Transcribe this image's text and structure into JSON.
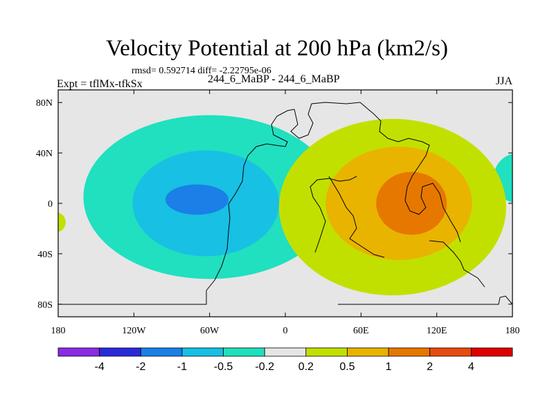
{
  "chart_data": {
    "type": "contour-map",
    "title": "Velocity Potential at 200 hPa (km2/s)",
    "stats_line": "rmsd= 0.592714 diff= -2.22795e-06",
    "expt_label": "Expt = tflMx-tfkSx",
    "subtitle": "244_6_MaBP - 244_6_MaBP",
    "season": "JJA",
    "x_axis": {
      "range": [
        -180,
        180
      ],
      "ticks": [
        -180,
        -120,
        -60,
        0,
        60,
        120,
        180
      ],
      "tick_labels": [
        "180",
        "120W",
        "60W",
        "0",
        "60E",
        "120E",
        "180"
      ]
    },
    "y_axis": {
      "range": [
        -90,
        90
      ],
      "ticks": [
        80,
        40,
        0,
        -40,
        -80
      ],
      "tick_labels": [
        "80N",
        "40N",
        "0",
        "40S",
        "80S"
      ]
    },
    "colorbar": {
      "colors": [
        "#8a2be2",
        "#2a2ad8",
        "#1a7fe6",
        "#18c0e4",
        "#20e0bf",
        "#e6e6e6",
        "#c2e000",
        "#e8b400",
        "#e67800",
        "#e84a10",
        "#e00000"
      ],
      "labels": [
        "-4",
        "-2",
        "-1",
        "-0.5",
        "-0.2",
        "0.2",
        "0.5",
        "1",
        "2",
        "4"
      ]
    },
    "contour_regions": [
      {
        "level": "-0.2 to -0.5",
        "color": "#20e0bf",
        "cx": -60,
        "cy": 5,
        "rx": 100,
        "ry": 65
      },
      {
        "level": "-0.2 to -0.5",
        "color": "#20e0bf",
        "cx": 185,
        "cy": 20,
        "rx": 20,
        "ry": 20
      },
      {
        "level": "-0.5 to -1",
        "color": "#18c0e4",
        "cx": -63,
        "cy": 0,
        "rx": 58,
        "ry": 42
      },
      {
        "level": "-1 to -2",
        "color": "#1a7fe6",
        "cx": -70,
        "cy": 3,
        "rx": 25,
        "ry": 12
      },
      {
        "level": "0.2 to 0.5",
        "color": "#c2e000",
        "cx": 85,
        "cy": -3,
        "rx": 90,
        "ry": 70
      },
      {
        "level": "0.2 to 0.5",
        "color": "#c2e000",
        "cx": -182,
        "cy": -15,
        "rx": 8,
        "ry": 8
      },
      {
        "level": "0.5 to 1",
        "color": "#e8b400",
        "cx": 90,
        "cy": 0,
        "rx": 58,
        "ry": 45
      },
      {
        "level": "1 to 2",
        "color": "#e67800",
        "cx": 100,
        "cy": 0,
        "rx": 28,
        "ry": 25
      }
    ]
  }
}
